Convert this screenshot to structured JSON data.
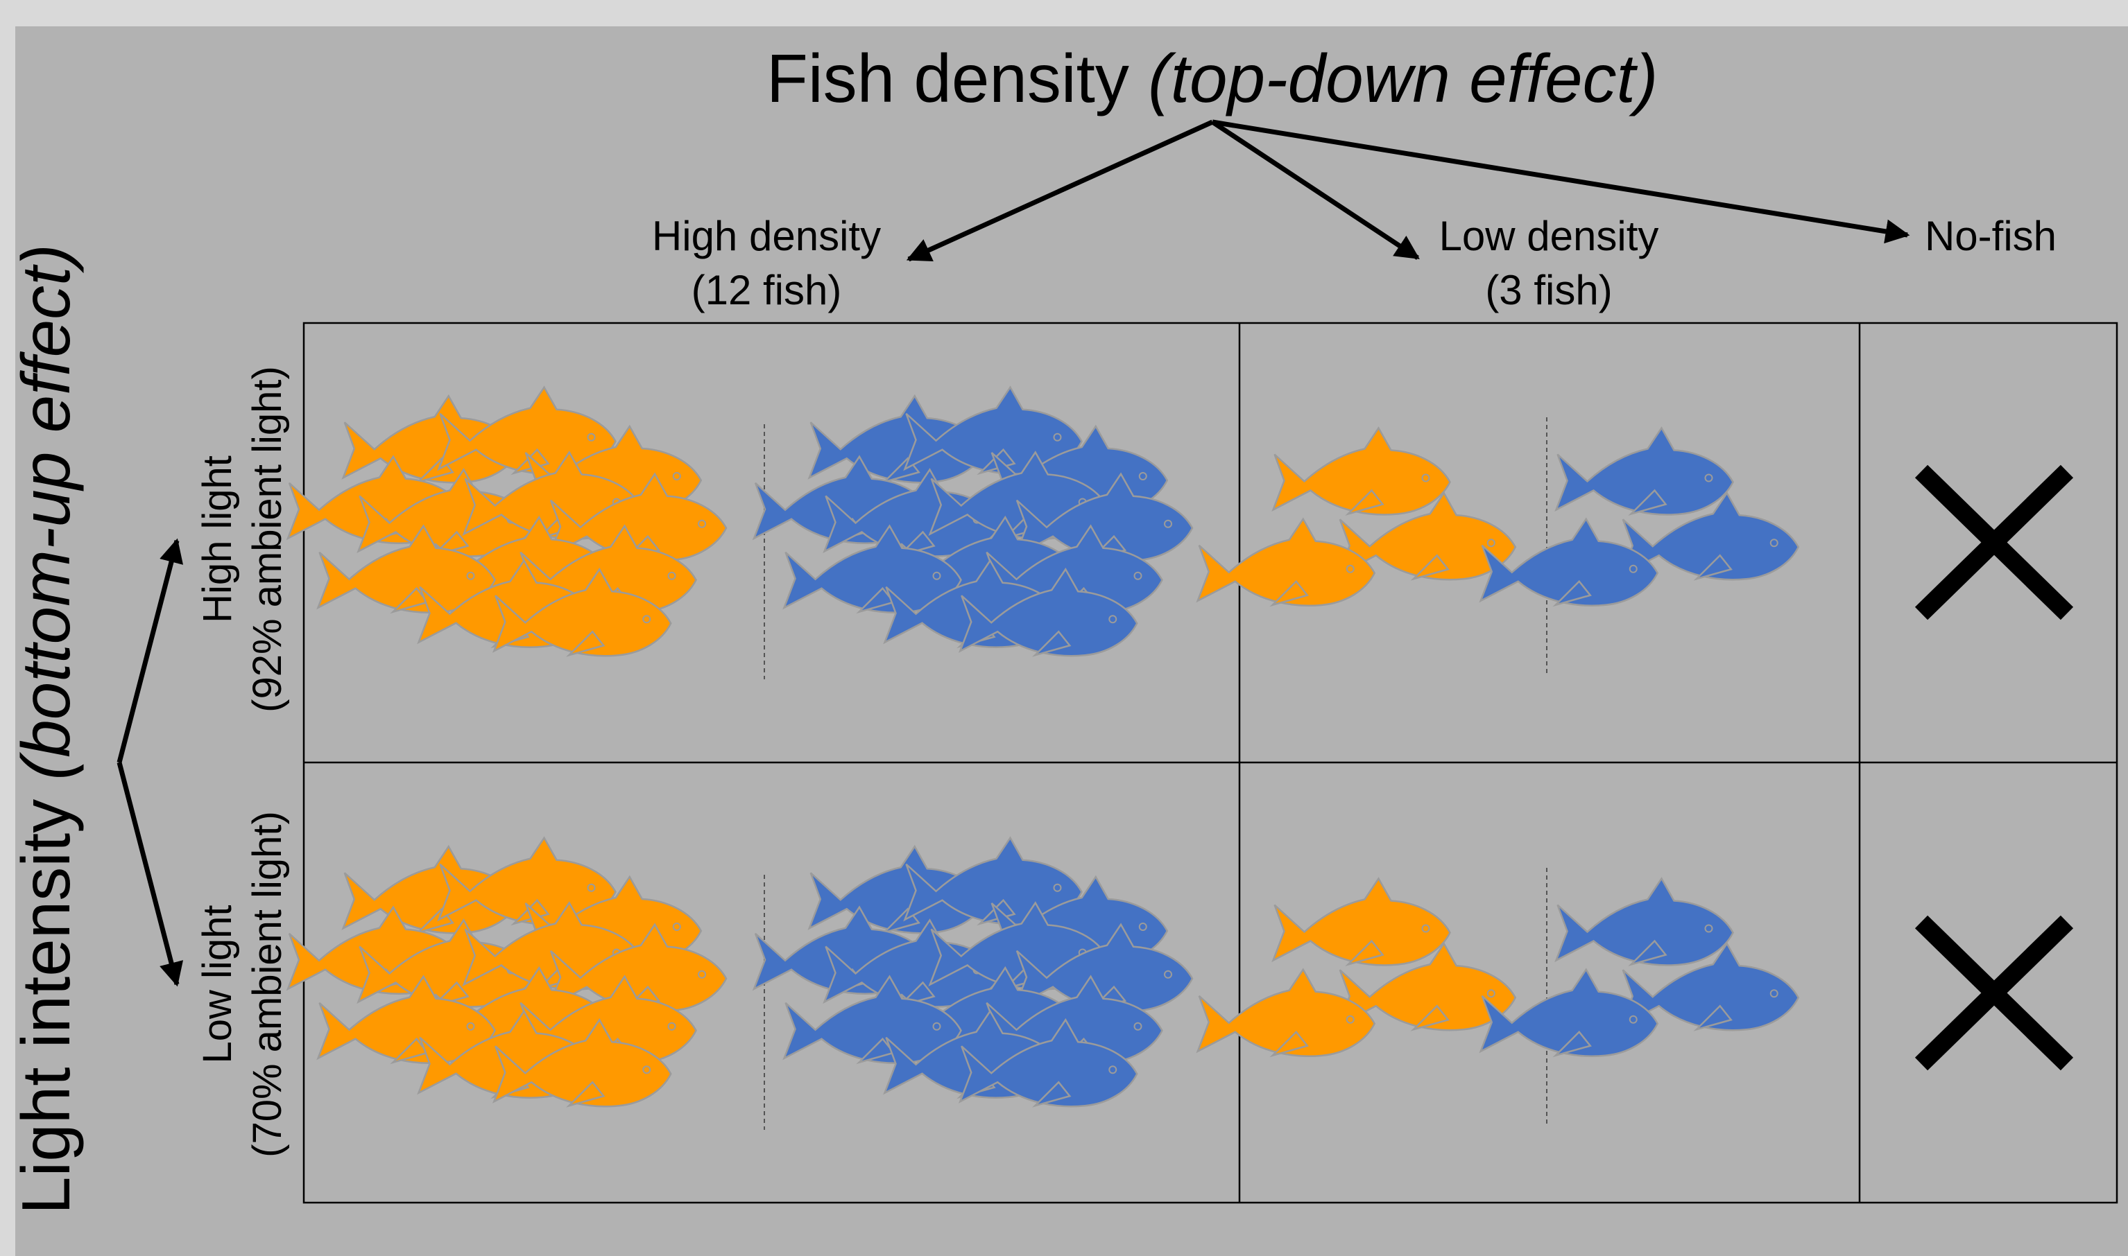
{
  "title": {
    "main": "Fish density ",
    "emph": "(top-down effect)"
  },
  "columns": [
    {
      "line1": "High density",
      "line2": "(12 fish)"
    },
    {
      "line1": "Low density",
      "line2": "(3 fish)"
    },
    {
      "line1": "No-fish",
      "line2": ""
    }
  ],
  "y_axis": {
    "main": "Light intensity ",
    "emph": "(bottom-up effect)"
  },
  "rows": [
    {
      "line1": "High light",
      "line2": "(92% ambient light)"
    },
    {
      "line1": "Low light",
      "line2": "(70% ambient light)"
    }
  ],
  "fish_groups": {
    "high_density": {
      "orange": 12,
      "blue": 12
    },
    "low_density": {
      "orange": 3,
      "blue": 3
    },
    "no_fish": {
      "orange": 0,
      "blue": 0
    }
  },
  "colors": {
    "background": "#b2b2b2",
    "outer": "#d9d9d9",
    "orange_fish": "#ff9900",
    "blue_fish": "#4472c4",
    "fish_outline": "#9b9b9b",
    "grid": "#000000",
    "cross": "#000000"
  },
  "icons": {
    "fish": "fish-icon",
    "cross": "cross-icon"
  }
}
